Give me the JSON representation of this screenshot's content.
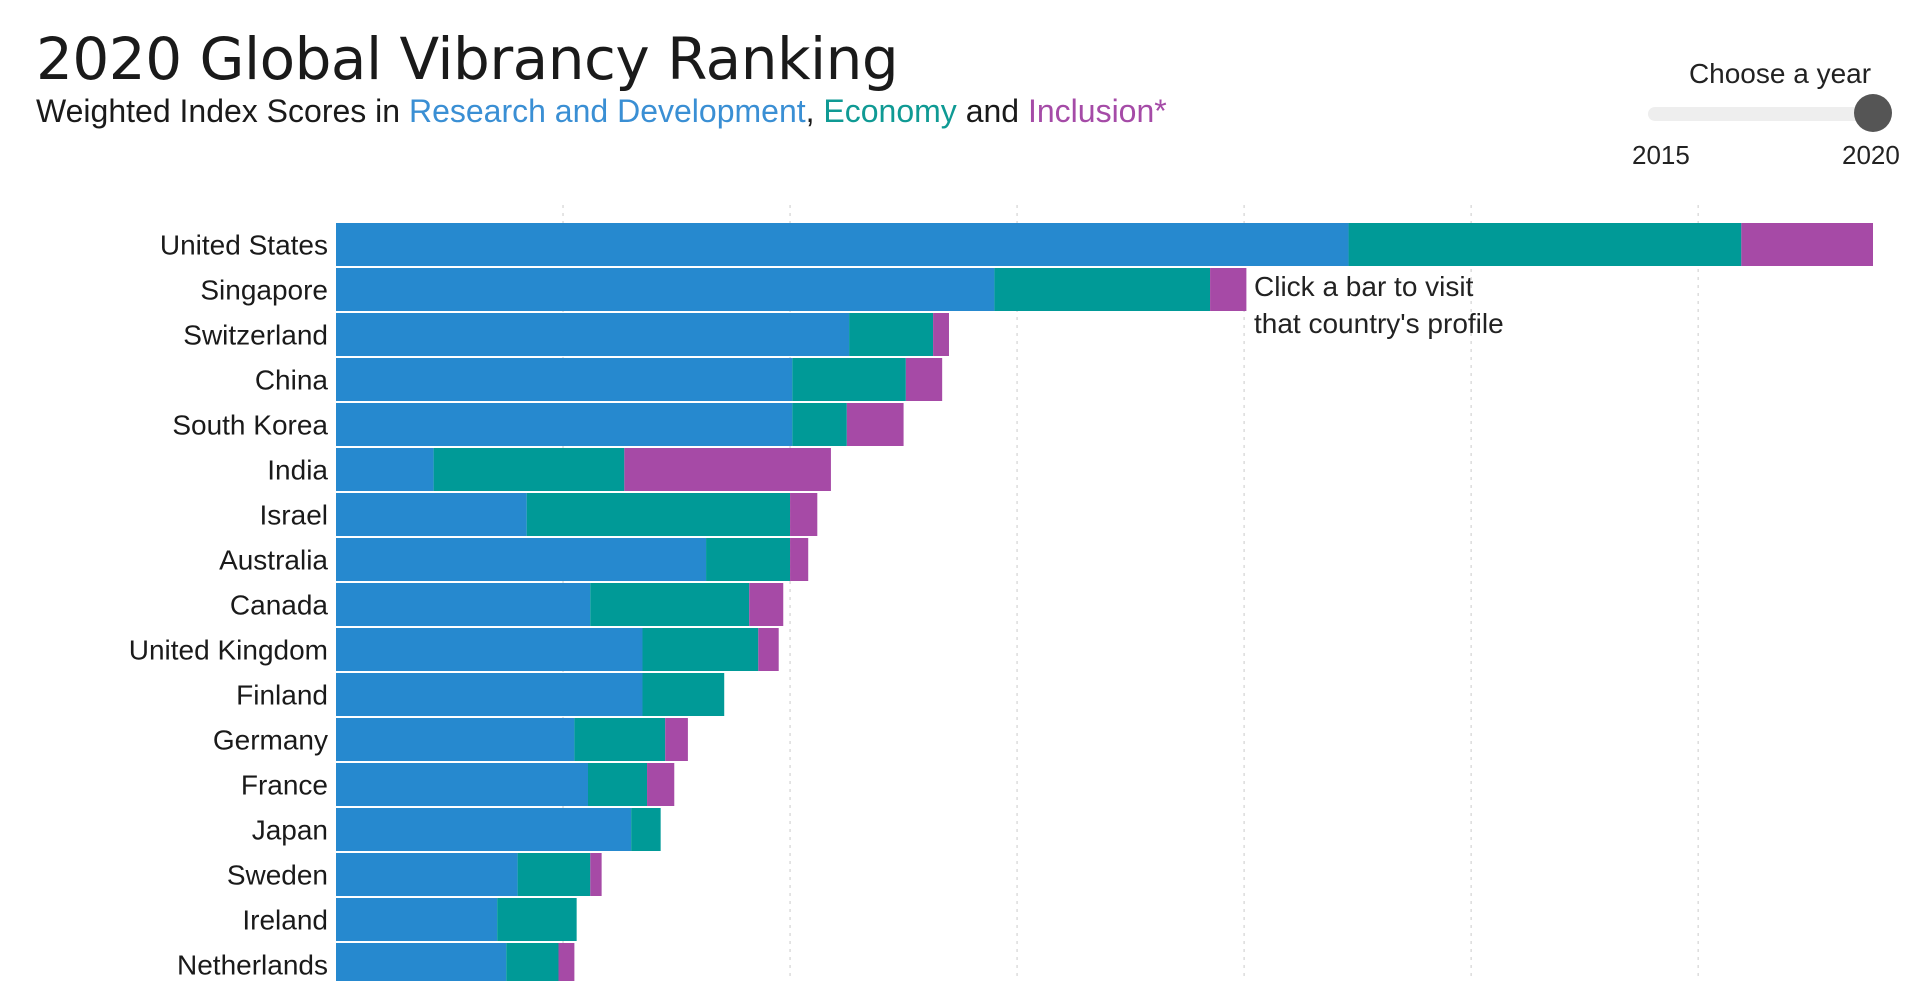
{
  "header": {
    "title": "2020 Global Vibrancy Ranking",
    "subtitle_prefix": "Weighted Index Scores in ",
    "subtitle_rd": "Research and Development",
    "subtitle_sep1": ", ",
    "subtitle_eco": "Economy",
    "subtitle_sep2": " and ",
    "subtitle_inc": "Inclusion*"
  },
  "year_selector": {
    "label": "Choose a year",
    "min_label": "2015",
    "max_label": "2020",
    "selected": 2020
  },
  "annotation": "Click a bar to visit that country's profile",
  "colors": {
    "research_and_development": "#2689cf",
    "economy": "#009a97",
    "inclusion": "#a64aa6"
  },
  "chart_data": {
    "type": "bar",
    "orientation": "horizontal",
    "stacked": true,
    "title": "2020 Global Vibrancy Ranking",
    "categories": [
      "United States",
      "Singapore",
      "Switzerland",
      "China",
      "South Korea",
      "India",
      "Israel",
      "Australia",
      "Canada",
      "United Kingdom",
      "Finland",
      "Germany",
      "France",
      "Japan",
      "Sweden",
      "Ireland",
      "Netherlands"
    ],
    "series": [
      {
        "name": "Research and Development",
        "values": [
          44.6,
          29.0,
          22.6,
          20.1,
          20.1,
          4.3,
          8.4,
          16.3,
          11.2,
          13.5,
          13.5,
          10.5,
          11.1,
          13.0,
          8.0,
          7.1,
          7.5
        ]
      },
      {
        "name": "Economy",
        "values": [
          17.3,
          9.5,
          3.7,
          5.0,
          2.4,
          8.4,
          11.6,
          3.7,
          7.0,
          5.1,
          3.6,
          4.0,
          2.6,
          1.3,
          3.2,
          3.5,
          2.3
        ]
      },
      {
        "name": "Inclusion",
        "values": [
          5.8,
          1.6,
          0.7,
          1.6,
          2.5,
          9.1,
          1.2,
          0.8,
          1.5,
          0.9,
          0.0,
          1.0,
          1.2,
          0.0,
          0.5,
          0.0,
          0.7
        ]
      }
    ],
    "xlim": [
      0,
      70
    ],
    "grid": true
  }
}
